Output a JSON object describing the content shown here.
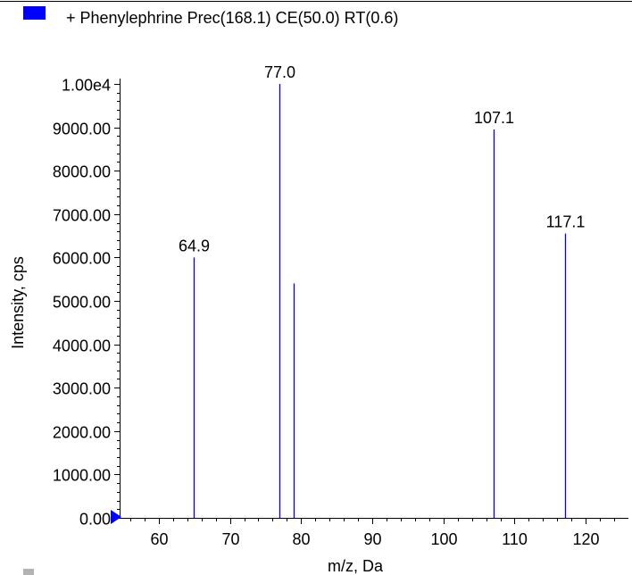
{
  "legend": {
    "label": "+ Phenylephrine Prec(168.1) CE(50.0) RT(0.6)",
    "swatch_color": "#0000ff"
  },
  "chart_data": {
    "type": "bar",
    "title": "",
    "xlabel": "m/z, Da",
    "ylabel": "Intensity, cps",
    "xlim": [
      54.5,
      126
    ],
    "ylim": [
      0,
      10000
    ],
    "x_ticks": [
      60,
      70,
      80,
      90,
      100,
      110,
      120
    ],
    "x_tick_labels": [
      "60",
      "70",
      "80",
      "90",
      "100",
      "110",
      "120"
    ],
    "y_ticks": [
      0,
      1000,
      2000,
      3000,
      4000,
      5000,
      6000,
      7000,
      8000,
      9000,
      10000
    ],
    "y_tick_labels": [
      "0.00",
      "1000.00",
      "2000.00",
      "3000.00",
      "4000.00",
      "5000.00",
      "6000.00",
      "7000.00",
      "8000.00",
      "9000.00",
      "1.00e4"
    ],
    "series": [
      {
        "color": "#0000ff",
        "peaks": [
          {
            "mz": 64.9,
            "intensity": 6000,
            "label": "64.9"
          },
          {
            "mz": 77.0,
            "intensity": 10000,
            "label": "77.0"
          },
          {
            "mz": 79.0,
            "intensity": 5400,
            "label": ""
          },
          {
            "mz": 107.1,
            "intensity": 8950,
            "label": "107.1"
          },
          {
            "mz": 117.1,
            "intensity": 6550,
            "label": "117.1"
          }
        ]
      }
    ],
    "grid": false,
    "legend_position": "top-left"
  }
}
